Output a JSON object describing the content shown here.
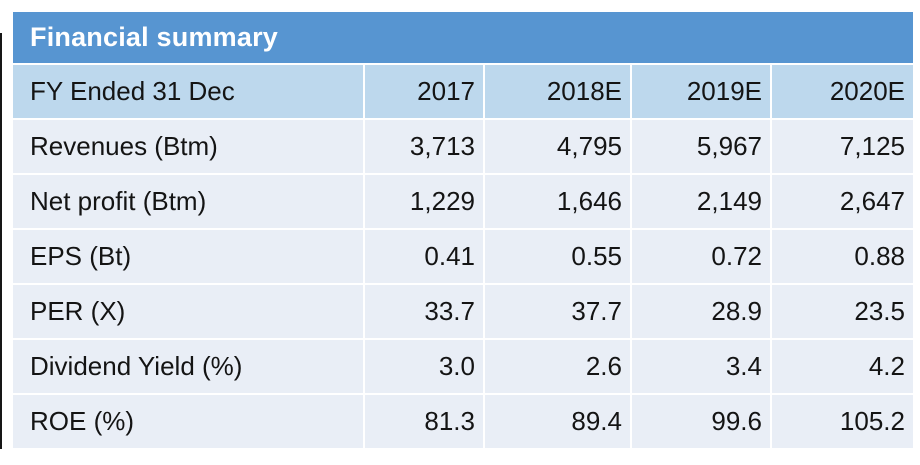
{
  "chart_data": {
    "type": "table",
    "title": "Financial summary",
    "header_label": "FY Ended 31 Dec",
    "columns": [
      "2017",
      "2018E",
      "2019E",
      "2020E"
    ],
    "rows": [
      {
        "label": "Revenues (Btm)",
        "values": [
          "3,713",
          "4,795",
          "5,967",
          "7,125"
        ]
      },
      {
        "label": "Net profit (Btm)",
        "values": [
          "1,229",
          "1,646",
          "2,149",
          "2,647"
        ]
      },
      {
        "label": "EPS (Bt)",
        "values": [
          "0.41",
          "0.55",
          "0.72",
          "0.88"
        ]
      },
      {
        "label": "PER (X)",
        "values": [
          "33.7",
          "37.7",
          "28.9",
          "23.5"
        ]
      },
      {
        "label": "Dividend Yield (%)",
        "values": [
          "3.0",
          "2.6",
          "3.4",
          "4.2"
        ]
      },
      {
        "label": "ROE (%)",
        "values": [
          "81.3",
          "89.4",
          "99.6",
          "105.2"
        ]
      }
    ],
    "layout": {
      "legend": "none",
      "grid": "white-separators"
    }
  },
  "colors": {
    "title_bar_bg": "#5795D1",
    "title_text": "#FFFFFF",
    "column_header_bg": "#BDD8ED",
    "data_row_bg": "#E9EEF6",
    "body_text": "#141414",
    "separator": "#FFFFFF"
  }
}
